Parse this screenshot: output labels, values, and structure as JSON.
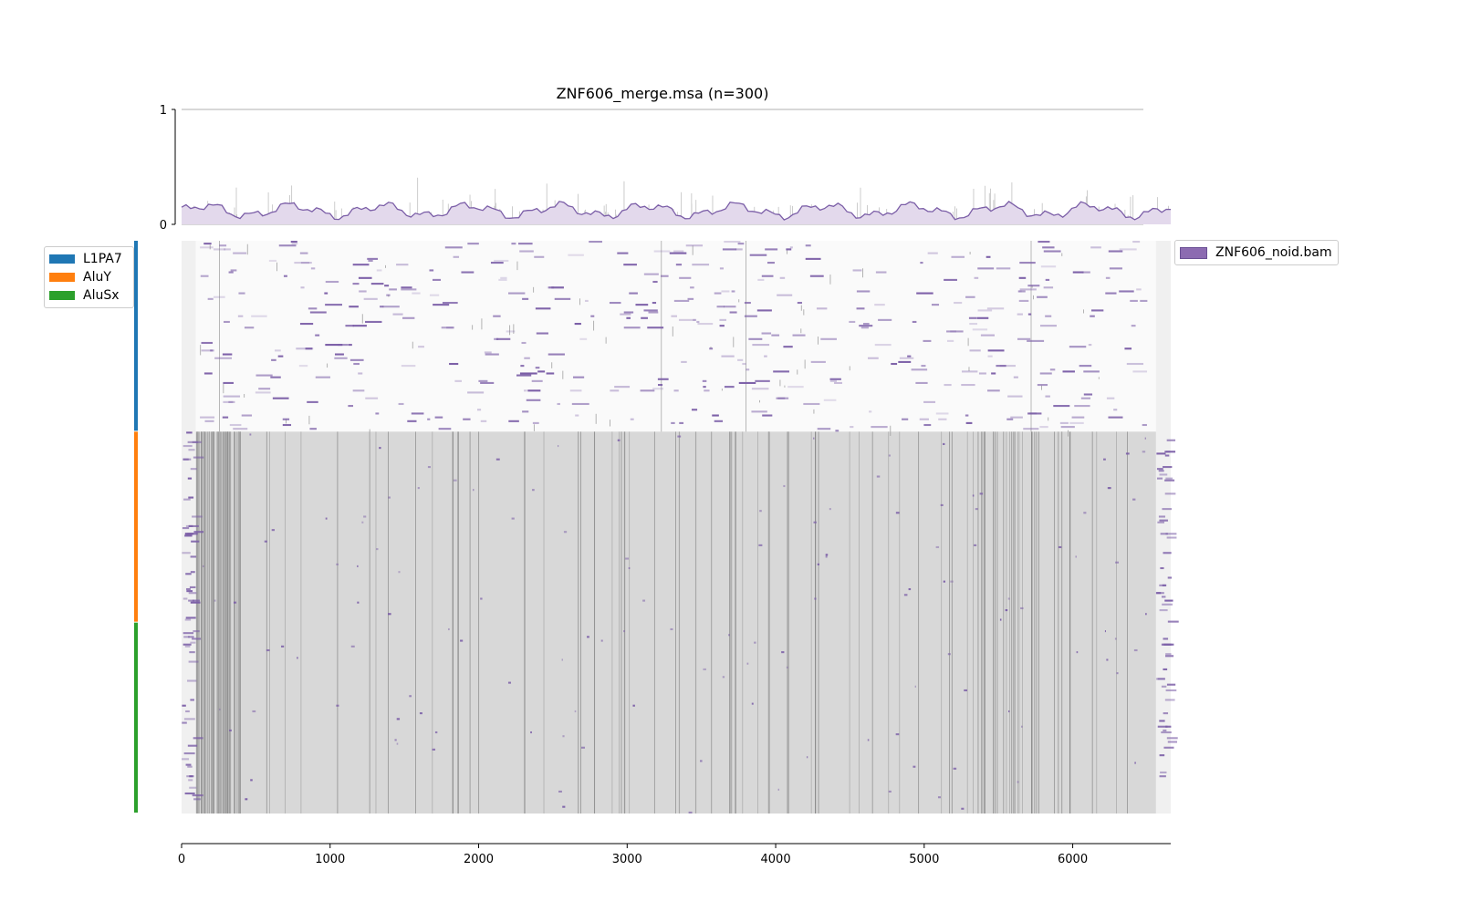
{
  "chart_data": {
    "type": "heatmap",
    "title": "ZNF606_merge.msa (n=300)",
    "n_sequences": 300,
    "alignment_length": 6660,
    "xlabel": "",
    "ylabel": "",
    "coverage_panel": {
      "type": "area",
      "ylim": [
        0,
        1
      ],
      "yticks": [
        "0",
        "1"
      ],
      "line_color": "#7b5ea7",
      "fill_color": "#e3d9ec",
      "conservation_color": "#c0c0c0"
    },
    "heatmap_panel": {
      "xlim": [
        0,
        6660
      ],
      "xticks": [
        "0",
        "1000",
        "2000",
        "3000",
        "4000",
        "5000",
        "6000"
      ],
      "background_gap": "#f0f0f0",
      "background_empty": "#fafafa",
      "background_aligned": "#d8d8d8",
      "signal_color": "#7b5ea7"
    },
    "families": [
      {
        "name": "L1PA7",
        "color": "#1f77b4",
        "row_start": 0,
        "row_end": 100
      },
      {
        "name": "AluY",
        "color": "#ff7f0e",
        "row_start": 100,
        "row_end": 200
      },
      {
        "name": "AluSx",
        "color": "#2ca02c",
        "row_start": 200,
        "row_end": 300
      }
    ],
    "series": [
      {
        "name": "ZNF606_noid.bam",
        "color": "#8c6bb1"
      }
    ],
    "legend_families_position": "left",
    "legend_series_position": "right"
  }
}
